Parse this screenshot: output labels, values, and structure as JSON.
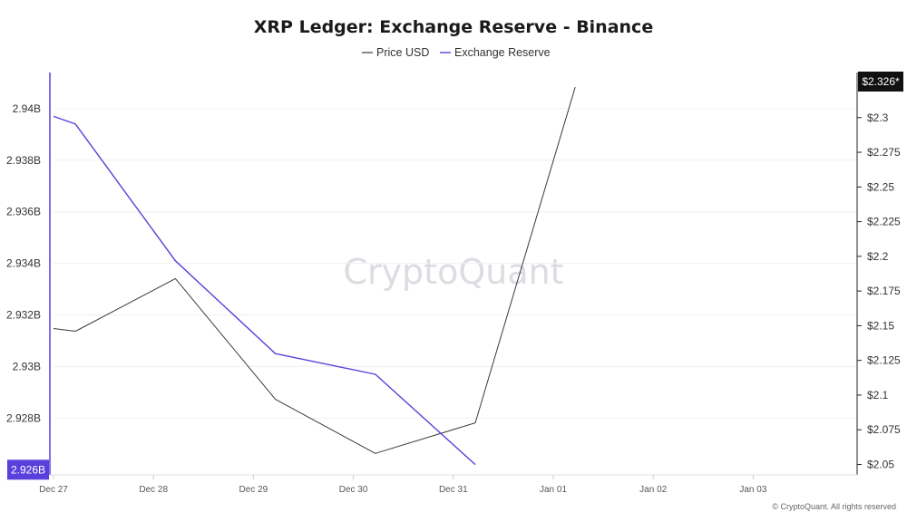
{
  "chart_data": {
    "type": "line",
    "title": "XRP Ledger: Exchange Reserve - Binance",
    "legend": {
      "placement": "top-center",
      "entries": [
        "Price USD",
        "Exchange Reserve"
      ]
    },
    "x_ticks": [
      "Dec 27",
      "Dec 28",
      "Dec 29",
      "Dec 30",
      "Dec 31",
      "Jan 01",
      "Jan 02",
      "Jan 03"
    ],
    "x_range": [
      0,
      8
    ],
    "y_left": {
      "ticks": [
        "2.94B",
        "2.938B",
        "2.936B",
        "2.934B",
        "2.932B",
        "2.93B",
        "2.928B"
      ],
      "tick_values": [
        2.94,
        2.938,
        2.936,
        2.934,
        2.932,
        2.93,
        2.928
      ],
      "range": [
        2.9258,
        2.9414
      ],
      "current_label": "2.926B",
      "current_value": 2.926,
      "color": "#5a3fdc"
    },
    "y_right": {
      "ticks": [
        "$2.3",
        "$2.275",
        "$2.25",
        "$2.225",
        "$2.2",
        "$2.175",
        "$2.15",
        "$2.125",
        "$2.1",
        "$2.075",
        "$2.05"
      ],
      "tick_values": [
        2.3,
        2.275,
        2.25,
        2.225,
        2.2,
        2.175,
        2.15,
        2.125,
        2.1,
        2.075,
        2.05
      ],
      "range": [
        2.0425,
        2.3325
      ],
      "current_label": "$2.326*",
      "current_value": 2.326
    },
    "series": [
      {
        "name": "Price USD",
        "axis": "right",
        "color": "#3a3a3a",
        "points": [
          {
            "x": 0.0,
            "y": 2.148
          },
          {
            "x": 0.22,
            "y": 2.146
          },
          {
            "x": 1.22,
            "y": 2.184
          },
          {
            "x": 2.22,
            "y": 2.097
          },
          {
            "x": 3.22,
            "y": 2.058
          },
          {
            "x": 4.22,
            "y": 2.08
          },
          {
            "x": 5.22,
            "y": 2.322
          }
        ]
      },
      {
        "name": "Exchange Reserve",
        "axis": "left",
        "color": "#5a3fdc",
        "points": [
          {
            "x": 0.0,
            "y": 2.9397
          },
          {
            "x": 0.22,
            "y": 2.9394
          },
          {
            "x": 1.22,
            "y": 2.9341
          },
          {
            "x": 2.22,
            "y": 2.9305
          },
          {
            "x": 3.22,
            "y": 2.9297
          },
          {
            "x": 4.22,
            "y": 2.9262
          }
        ]
      }
    ],
    "grid": "horizontal"
  },
  "watermark": "CryptoQuant",
  "footer": "© CryptoQuant. All rights reserved"
}
